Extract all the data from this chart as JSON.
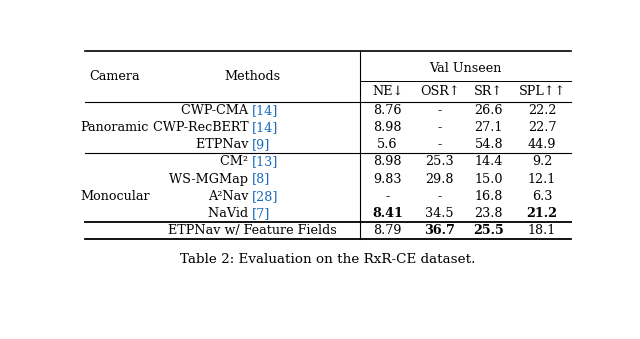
{
  "title": "Table 2: Evaluation on the RxR-CE dataset.",
  "group_header": "Val Unseen",
  "col_headers": [
    "Camera",
    "Methods",
    "NE↓",
    "OSR↑",
    "SR↑",
    "SPL↑↑"
  ],
  "rows": [
    {
      "camera": "Panoramic",
      "method": "CWP-CMA",
      "ref": "[14]",
      "ne": "8.76",
      "osr": "-",
      "sr": "26.6",
      "spl": "22.2",
      "bold_ne": false,
      "bold_osr": false,
      "bold_sr": false,
      "bold_spl": false
    },
    {
      "camera": "Panoramic",
      "method": "CWP-RecBERT",
      "ref": "[14]",
      "ne": "8.98",
      "osr": "-",
      "sr": "27.1",
      "spl": "22.7",
      "bold_ne": false,
      "bold_osr": false,
      "bold_sr": false,
      "bold_spl": false
    },
    {
      "camera": "Panoramic",
      "method": "ETPNav",
      "ref": "[9]",
      "ne": "5.6",
      "osr": "-",
      "sr": "54.8",
      "spl": "44.9",
      "bold_ne": false,
      "bold_osr": false,
      "bold_sr": false,
      "bold_spl": false
    },
    {
      "camera": "Monocular",
      "method": "CM²",
      "ref": "[13]",
      "ne": "8.98",
      "osr": "25.3",
      "sr": "14.4",
      "spl": "9.2",
      "bold_ne": false,
      "bold_osr": false,
      "bold_sr": false,
      "bold_spl": false
    },
    {
      "camera": "Monocular",
      "method": "WS-MGMap",
      "ref": "[8]",
      "ne": "9.83",
      "osr": "29.8",
      "sr": "15.0",
      "spl": "12.1",
      "bold_ne": false,
      "bold_osr": false,
      "bold_sr": false,
      "bold_spl": false
    },
    {
      "camera": "Monocular",
      "method": "A²Nav",
      "ref": "[28]",
      "ne": "-",
      "osr": "-",
      "sr": "16.8",
      "spl": "6.3",
      "bold_ne": false,
      "bold_osr": false,
      "bold_sr": false,
      "bold_spl": false
    },
    {
      "camera": "Monocular",
      "method": "NaVid",
      "ref": "[7]",
      "ne": "8.41",
      "osr": "34.5",
      "sr": "23.8",
      "spl": "21.2",
      "bold_ne": true,
      "bold_osr": false,
      "bold_sr": false,
      "bold_spl": true
    },
    {
      "camera": "Monocular",
      "method": "ETPNav w/ Feature Fields",
      "ref": "",
      "ne": "8.79",
      "osr": "36.7",
      "sr": "25.5",
      "spl": "18.1",
      "bold_ne": false,
      "bold_osr": true,
      "bold_sr": true,
      "bold_spl": false,
      "last_row": true
    }
  ],
  "bg_color": "#ffffff",
  "text_color": "#000000",
  "ref_color": "#1a6bbf"
}
